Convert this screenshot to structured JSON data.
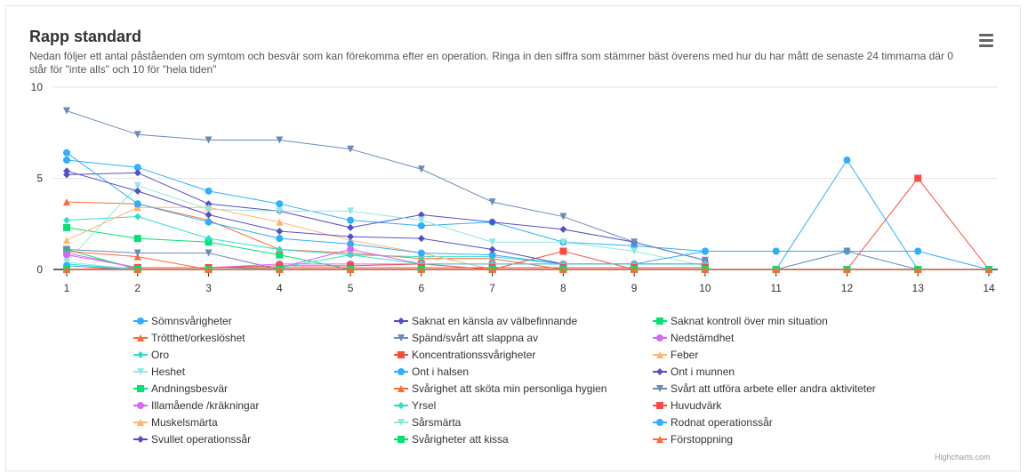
{
  "header": {
    "title": "Rapp standard",
    "subtitle": "Nedan följer ett antal påståenden om symtom och besvär som kan förekomma efter en operation. Ringa in den siffra som stämmer bäst överens med hur du har mått de senaste 24 timmarna där 0 står för \"inte alls\" och 10 för \"hela tiden\"",
    "menu_icon": "hamburger-menu-icon"
  },
  "credits": "Highcharts.com",
  "chart_data": {
    "type": "line",
    "title": "Rapp standard",
    "xlabel": "",
    "ylabel": "",
    "x": [
      1,
      2,
      3,
      4,
      5,
      6,
      7,
      8,
      9,
      10,
      11,
      12,
      13,
      14
    ],
    "xticks": [
      "1",
      "2",
      "3",
      "4",
      "5",
      "6",
      "7",
      "8",
      "9",
      "10",
      "11",
      "12",
      "13",
      "14"
    ],
    "yticks": [
      "0",
      "5",
      "10"
    ],
    "ylim": [
      0,
      10
    ],
    "grid": true,
    "legend_placement": "bottom",
    "series": [
      {
        "name": "Sömnsvårigheter",
        "color": "#2caffe",
        "marker": "circle",
        "values": [
          6.0,
          5.6,
          4.3,
          3.6,
          2.7,
          2.4,
          2.6,
          1.5,
          1.3,
          1.0,
          null,
          null,
          null,
          null
        ]
      },
      {
        "name": "Saknat en känsla av välbefinnande",
        "color": "#544fc5",
        "marker": "diamond",
        "values": [
          5.2,
          5.3,
          3.6,
          3.2,
          2.3,
          3.0,
          2.6,
          2.2,
          1.5,
          0.5,
          null,
          null,
          null,
          null
        ]
      },
      {
        "name": "Saknat kontroll över min situation",
        "color": "#00e272",
        "marker": "square",
        "values": [
          2.3,
          1.7,
          1.5,
          0.8,
          0,
          0,
          0,
          0,
          0,
          0,
          0,
          0,
          0,
          0
        ]
      },
      {
        "name": "Trötthet/orkeslöshet",
        "color": "#fe6a35",
        "marker": "triangle",
        "values": [
          3.7,
          3.6,
          2.7,
          1.1,
          0.9,
          0.6,
          0.6,
          0,
          0,
          0,
          null,
          null,
          null,
          null
        ]
      },
      {
        "name": "Spänd/svårt att slappna av",
        "color": "#6b8abc",
        "marker": "triangle-down",
        "values": [
          8.7,
          7.4,
          7.1,
          7.1,
          6.6,
          5.5,
          3.7,
          2.9,
          1.5,
          0.5,
          null,
          null,
          null,
          null
        ]
      },
      {
        "name": "Nedstämdhet",
        "color": "#d568fb",
        "marker": "circle",
        "values": [
          0.9,
          0.1,
          0.1,
          0.3,
          0.3,
          0.3,
          0.3,
          0.3,
          0.3,
          0.3,
          null,
          null,
          null,
          null
        ]
      },
      {
        "name": "Oro",
        "color": "#2ee0ca",
        "marker": "diamond",
        "values": [
          2.7,
          2.9,
          1.7,
          1.1,
          0.8,
          0.7,
          0.7,
          0.3,
          0.3,
          0.3,
          null,
          null,
          null,
          null
        ]
      },
      {
        "name": "Koncentrationssvårigheter",
        "color": "#fa4b42",
        "marker": "square",
        "values": [
          0,
          0.1,
          0.1,
          0.2,
          0.2,
          0.3,
          0,
          1.0,
          0,
          0,
          0,
          0,
          5.0,
          0
        ]
      },
      {
        "name": "Feber",
        "color": "#feb56a",
        "marker": "triangle",
        "values": [
          1.6,
          3.4,
          3.4,
          2.6,
          1.6,
          0.9,
          0,
          0,
          0,
          0,
          null,
          null,
          null,
          null
        ]
      },
      {
        "name": "Heshet",
        "color": "#91e8e1",
        "marker": "triangle-down",
        "values": [
          0.4,
          4.6,
          3.3,
          3.2,
          3.2,
          2.7,
          1.5,
          1.5,
          1.0,
          0.2,
          null,
          null,
          null,
          null
        ]
      },
      {
        "name": "Ont i halsen",
        "color": "#2caffe",
        "marker": "circle",
        "values": [
          6.4,
          3.6,
          2.6,
          1.7,
          1.4,
          0.9,
          0.8,
          0.3,
          0.3,
          1.0,
          1.0,
          1.0,
          1.0,
          0
        ]
      },
      {
        "name": "Ont i munnen",
        "color": "#544fc5",
        "marker": "diamond",
        "values": [
          5.4,
          4.3,
          3.0,
          2.1,
          1.8,
          1.7,
          1.1,
          0.3,
          0.3,
          0.3,
          null,
          null,
          null,
          null
        ]
      },
      {
        "name": "Andningsbesvär",
        "color": "#00e272",
        "marker": "square",
        "values": [
          1.1,
          0,
          0,
          0,
          0,
          0,
          0,
          0,
          0,
          0,
          0,
          0,
          0,
          0
        ]
      },
      {
        "name": "Svårighet att sköta min personliga hygien",
        "color": "#fe6a35",
        "marker": "triangle",
        "values": [
          1.0,
          0.7,
          0,
          0,
          0,
          0,
          0,
          0,
          0,
          0,
          null,
          null,
          null,
          null
        ]
      },
      {
        "name": "Svårt att utföra arbete eller andra aktiviteter",
        "color": "#6b8abc",
        "marker": "triangle-down",
        "values": [
          1.1,
          0.9,
          0.9,
          0,
          0,
          0,
          0,
          0,
          0,
          0,
          0,
          1.0,
          0,
          0
        ]
      },
      {
        "name": "Illamående /kräkningar",
        "color": "#d568fb",
        "marker": "circle",
        "values": [
          0.8,
          0.1,
          0.1,
          0.1,
          1.1,
          0.3,
          0.3,
          0.3,
          0.3,
          0.3,
          null,
          null,
          null,
          null
        ]
      },
      {
        "name": "Yrsel",
        "color": "#2ee0ca",
        "marker": "diamond",
        "values": [
          0.3,
          0,
          0,
          0.1,
          0.8,
          0.3,
          0.3,
          0.3,
          0.3,
          0.3,
          null,
          null,
          null,
          null
        ]
      },
      {
        "name": "Huvudvärk",
        "color": "#fa4b42",
        "marker": "square",
        "values": [
          0,
          0.1,
          0.1,
          0.1,
          0.1,
          0.1,
          0.1,
          0.1,
          0.1,
          0.1,
          null,
          null,
          null,
          null
        ]
      },
      {
        "name": "Muskelsmärta",
        "color": "#feb56a",
        "marker": "triangle",
        "values": [
          0,
          0,
          0,
          0,
          0,
          0,
          0,
          0,
          0,
          0,
          0,
          0,
          0,
          0
        ]
      },
      {
        "name": "Sårsmärta",
        "color": "#91e8e1",
        "marker": "triangle-down",
        "values": [
          0.4,
          0,
          0,
          0,
          0,
          0,
          0,
          0,
          0,
          0,
          null,
          null,
          null,
          null
        ]
      },
      {
        "name": "Rodnat operationssår",
        "color": "#2caffe",
        "marker": "circle",
        "values": [
          0.2,
          0,
          0,
          0,
          0,
          0,
          0,
          0,
          0,
          0,
          0,
          6.0,
          0,
          0
        ]
      },
      {
        "name": "Svullet operationssår",
        "color": "#544fc5",
        "marker": "diamond",
        "values": [
          0,
          0,
          0,
          0,
          0,
          0,
          0,
          0,
          0,
          0,
          null,
          null,
          null,
          null
        ]
      },
      {
        "name": "Svårigheter att kissa",
        "color": "#00e272",
        "marker": "square",
        "values": [
          0,
          0,
          0,
          0,
          0,
          0,
          0,
          0,
          0,
          0,
          0,
          0,
          0,
          0
        ]
      },
      {
        "name": "Förstoppning",
        "color": "#fe6a35",
        "marker": "triangle",
        "values": [
          0,
          0,
          0,
          0,
          0,
          0,
          0,
          0,
          0,
          0,
          0,
          0,
          0,
          0
        ]
      }
    ]
  }
}
